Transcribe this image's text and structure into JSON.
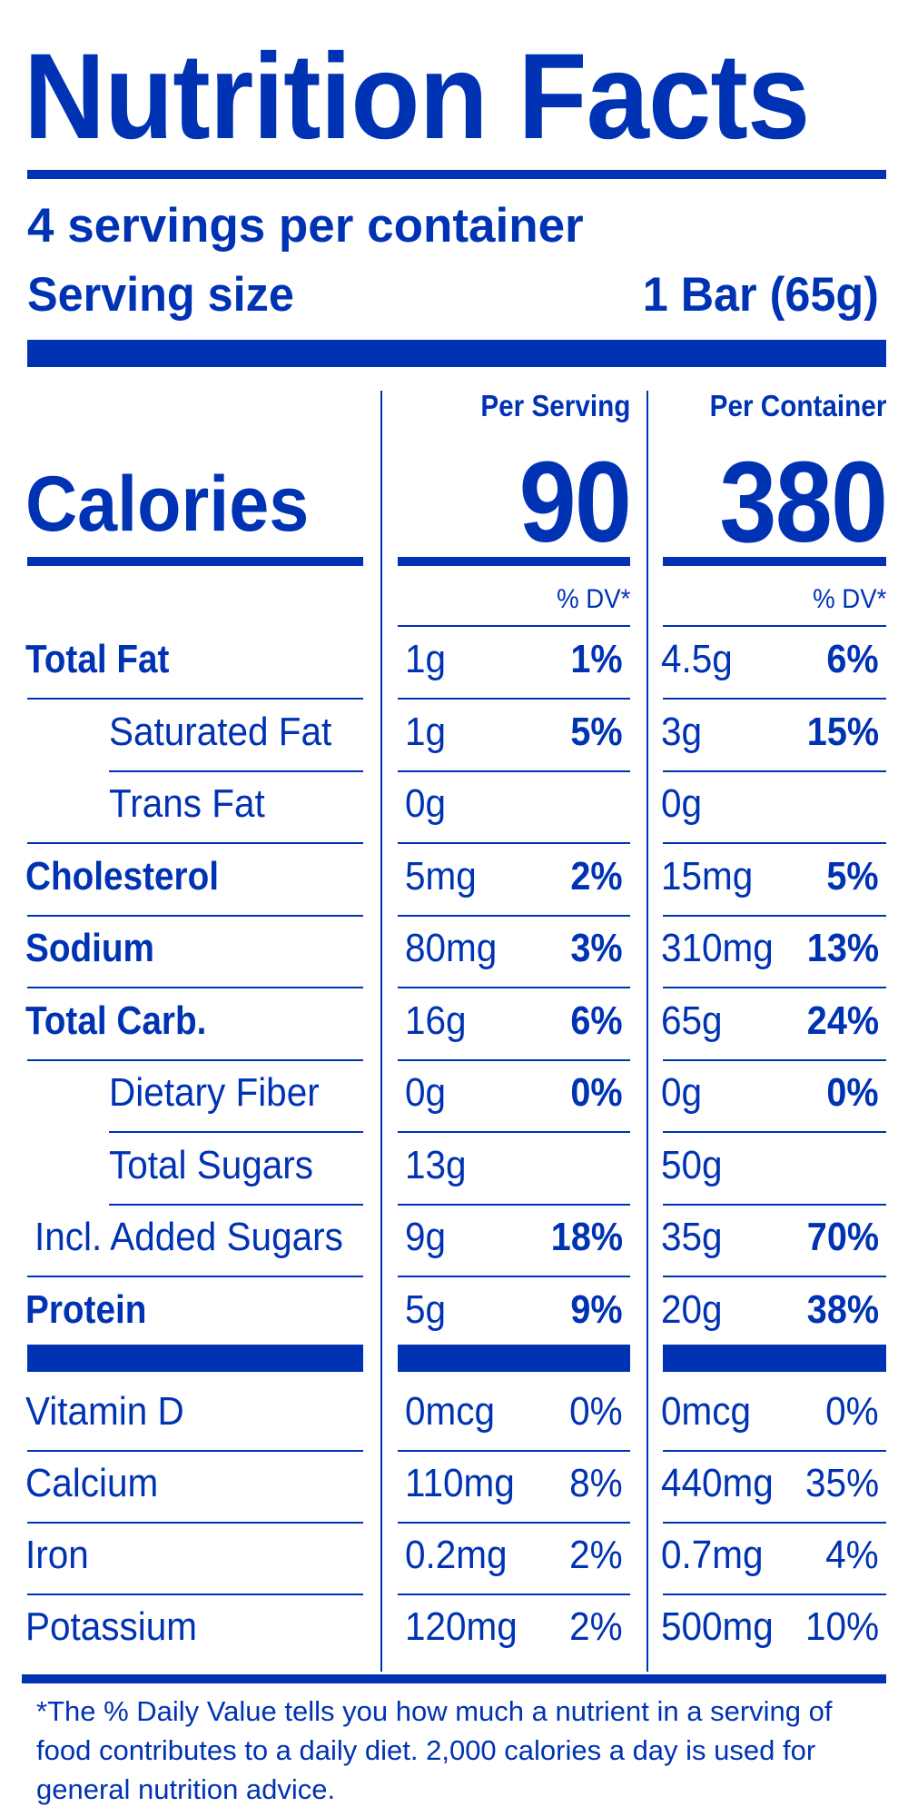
{
  "label": {
    "title": "Nutrition Facts",
    "servings_per_container": "4 servings per container",
    "serving_size_label": "Serving size",
    "serving_size_value": "1 Bar (65g)",
    "per_serving_label": "Per Serving",
    "per_container_label": "Per Container",
    "calories_label": "Calories",
    "calories_per_serving": "90",
    "calories_per_container": "380",
    "dv_label": "% DV*"
  },
  "nutrients": [
    {
      "name": "Total Fat",
      "bold": true,
      "indent": false,
      "serving_amount": "1g",
      "serving_dv": "1%",
      "container_amount": "4.5g",
      "container_dv": "6%"
    },
    {
      "name": "Saturated Fat",
      "bold": false,
      "indent": true,
      "serving_amount": "1g",
      "serving_dv": "5%",
      "container_amount": "3g",
      "container_dv": "15%"
    },
    {
      "name": "Trans Fat",
      "bold": false,
      "indent": true,
      "serving_amount": "0g",
      "serving_dv": "",
      "container_amount": "0g",
      "container_dv": ""
    },
    {
      "name": "Cholesterol",
      "bold": true,
      "indent": false,
      "serving_amount": "5mg",
      "serving_dv": "2%",
      "container_amount": "15mg",
      "container_dv": "5%"
    },
    {
      "name": "Sodium",
      "bold": true,
      "indent": false,
      "serving_amount": "80mg",
      "serving_dv": "3%",
      "container_amount": "310mg",
      "container_dv": "13%"
    },
    {
      "name": "Total Carb.",
      "bold": true,
      "indent": false,
      "serving_amount": "16g",
      "serving_dv": "6%",
      "container_amount": "65g",
      "container_dv": "24%"
    },
    {
      "name": "Dietary Fiber",
      "bold": false,
      "indent": true,
      "serving_amount": "0g",
      "serving_dv": "0%",
      "container_amount": "0g",
      "container_dv": "0%"
    },
    {
      "name": "Total Sugars",
      "bold": false,
      "indent": true,
      "serving_amount": "13g",
      "serving_dv": "",
      "container_amount": "50g",
      "container_dv": ""
    },
    {
      "name": "Incl. Added Sugars",
      "bold": false,
      "indent": false,
      "serving_amount": "9g",
      "serving_dv": "18%",
      "container_amount": "35g",
      "container_dv": "70%"
    },
    {
      "name": "Protein",
      "bold": true,
      "indent": false,
      "serving_amount": "5g",
      "serving_dv": "9%",
      "container_amount": "20g",
      "container_dv": "38%"
    }
  ],
  "vitamins": [
    {
      "name": "Vitamin D",
      "serving_amount": "0mcg",
      "serving_dv": "0%",
      "container_amount": "0mcg",
      "container_dv": "0%"
    },
    {
      "name": "Calcium",
      "serving_amount": "110mg",
      "serving_dv": "8%",
      "container_amount": "440mg",
      "container_dv": "35%"
    },
    {
      "name": "Iron",
      "serving_amount": "0.2mg",
      "serving_dv": "2%",
      "container_amount": "0.7mg",
      "container_dv": "4%"
    },
    {
      "name": "Potassium",
      "serving_amount": "120mg",
      "serving_dv": "2%",
      "container_amount": "500mg",
      "container_dv": "10%"
    }
  ],
  "footnote": "*The % Daily Value tells you how much a nutrient in a serving of food contributes to a daily diet. 2,000 calories a day is used for general nutrition advice.",
  "colors": {
    "label_blue": "#0033b3"
  }
}
